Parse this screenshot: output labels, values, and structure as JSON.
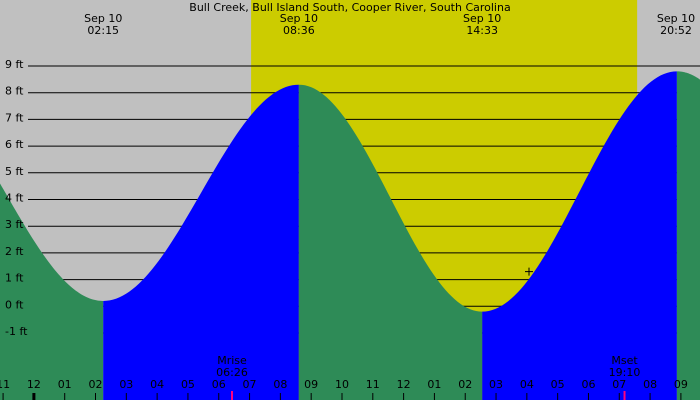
{
  "chart_data": {
    "type": "tide",
    "title": "Bull Creek, Bull Island South, Cooper River, South Carolina",
    "extremes": [
      {
        "date": "Sep 10",
        "time": {
          "value": 2.25,
          "label": "02:15"
        },
        "height": 0.2
      },
      {
        "date": "Sep 10",
        "time": {
          "value": 8.6,
          "label": "08:36"
        },
        "height": 8.3
      },
      {
        "date": "Sep 10",
        "time": {
          "value": 14.55,
          "label": "14:33"
        },
        "height": -0.2
      },
      {
        "date": "Sep 10",
        "time": {
          "value": 20.87,
          "label": "20:52"
        },
        "height": 8.8
      }
    ],
    "rising_color": "#0000ff",
    "falling_color": "#2e8b57",
    "night_color": "#c0c0c0",
    "day_color": "#cccc00",
    "daylight": {
      "start": 7.05,
      "end": 19.58
    },
    "moon_events": [
      {
        "label": "Mrise",
        "time": {
          "value": 6.43,
          "label": "06:26"
        }
      },
      {
        "label": "Mset",
        "time": {
          "value": 19.17,
          "label": "19:10"
        }
      }
    ],
    "moon_color": "#ff0080",
    "marker": {
      "x": 16.07,
      "y": 1.3
    },
    "ylim": [
      -1.6,
      9.7
    ],
    "yticks": [
      {
        "value": 9,
        "label": "9 ft"
      },
      {
        "value": 8,
        "label": "8 ft"
      },
      {
        "value": 7,
        "label": "7 ft"
      },
      {
        "value": 6,
        "label": "6 ft"
      },
      {
        "value": 5,
        "label": "5 ft"
      },
      {
        "value": 4,
        "label": "4 ft"
      },
      {
        "value": 3,
        "label": "3 ft"
      },
      {
        "value": 2,
        "label": "2 ft"
      },
      {
        "value": 1,
        "label": "1 ft"
      },
      {
        "value": 0,
        "label": "0 ft"
      },
      {
        "value": -1,
        "label": "-1 ft"
      }
    ],
    "xlim": [
      -1.1,
      21.62
    ],
    "xticks": [
      {
        "value": -1,
        "label": "11"
      },
      {
        "value": 0,
        "label": "12"
      },
      {
        "value": 1,
        "label": "01"
      },
      {
        "value": 2,
        "label": "02"
      },
      {
        "value": 3,
        "label": "03"
      },
      {
        "value": 4,
        "label": "04"
      },
      {
        "value": 5,
        "label": "05"
      },
      {
        "value": 6,
        "label": "06"
      },
      {
        "value": 7,
        "label": "07"
      },
      {
        "value": 8,
        "label": "08"
      },
      {
        "value": 9,
        "label": "09"
      },
      {
        "value": 10,
        "label": "10"
      },
      {
        "value": 11,
        "label": "11"
      },
      {
        "value": 12,
        "label": "12"
      },
      {
        "value": 13,
        "label": "01"
      },
      {
        "value": 14,
        "label": "02"
      },
      {
        "value": 15,
        "label": "03"
      },
      {
        "value": 16,
        "label": "04"
      },
      {
        "value": 17,
        "label": "05"
      },
      {
        "value": 18,
        "label": "06"
      },
      {
        "value": 19,
        "label": "07"
      },
      {
        "value": 20,
        "label": "08"
      },
      {
        "value": 21,
        "label": "09"
      }
    ]
  }
}
